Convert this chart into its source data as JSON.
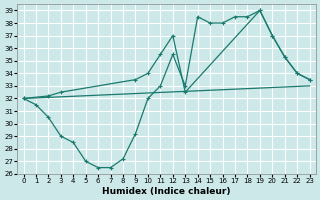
{
  "xlabel": "Humidex (Indice chaleur)",
  "xlim": [
    -0.5,
    23.5
  ],
  "ylim": [
    26,
    39.5
  ],
  "yticks": [
    26,
    27,
    28,
    29,
    30,
    31,
    32,
    33,
    34,
    35,
    36,
    37,
    38,
    39
  ],
  "xticks": [
    0,
    1,
    2,
    3,
    4,
    5,
    6,
    7,
    8,
    9,
    10,
    11,
    12,
    13,
    14,
    15,
    16,
    17,
    18,
    19,
    20,
    21,
    22,
    23
  ],
  "bg_color": "#cce8e8",
  "grid_color": "#ffffff",
  "line_color": "#1a7a6e",
  "line1_x": [
    0,
    1,
    2,
    3,
    4,
    5,
    6,
    7,
    8,
    9,
    10,
    11,
    12,
    13,
    14,
    15,
    16,
    17,
    18,
    19,
    20,
    21,
    22,
    23
  ],
  "line1_y": [
    32,
    31.5,
    30.5,
    29.0,
    28.5,
    27.0,
    26.5,
    26.5,
    27.2,
    29.2,
    32.0,
    33.0,
    35.5,
    33.0,
    38.5,
    38.0,
    38.0,
    38.5,
    38.5,
    39.0,
    37.0,
    35.3,
    34.0,
    33.5
  ],
  "line2_x": [
    0,
    2,
    3,
    9,
    10,
    11,
    12,
    13,
    19,
    20,
    21,
    22,
    23
  ],
  "line2_y": [
    32,
    32.2,
    32.5,
    33.5,
    34.0,
    35.5,
    37.0,
    32.5,
    39.0,
    37.0,
    35.3,
    34.0,
    33.5
  ],
  "line3_x": [
    0,
    23
  ],
  "line3_y": [
    32,
    33.0
  ]
}
